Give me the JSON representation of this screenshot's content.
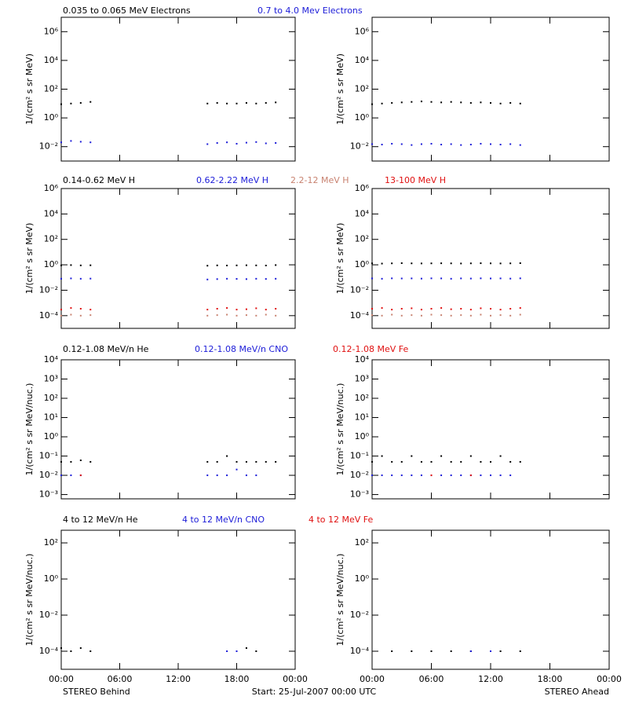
{
  "x_axis": {
    "xlim": [
      0,
      24
    ],
    "xticks": [
      {
        "value": 0,
        "label": "00:00"
      },
      {
        "value": 6,
        "label": "06:00"
      },
      {
        "value": 12,
        "label": "12:00"
      },
      {
        "value": 18,
        "label": "18:00"
      },
      {
        "value": 24,
        "label": "00:00"
      }
    ]
  },
  "footer": {
    "left": "STEREO Behind",
    "center": "Start: 25-Jul-2007 00:00 UTC",
    "right": "STEREO Ahead"
  },
  "chart_data": [
    {
      "type": "scatter",
      "log_y": true,
      "ylabel": "1/(cm² s sr MeV)",
      "ylim": [
        0.001,
        10000000
      ],
      "yticks": [
        {
          "value": 0.01,
          "label": "10⁻²"
        },
        {
          "value": 1,
          "label": "10⁰"
        },
        {
          "value": 100,
          "label": "10²"
        },
        {
          "value": 10000,
          "label": "10⁴"
        },
        {
          "value": 1000000,
          "label": "10⁶"
        }
      ],
      "x": [
        [
          0,
          1,
          2,
          3,
          15,
          16,
          17,
          18,
          19,
          20,
          21,
          22
        ],
        [
          0,
          1,
          2,
          3,
          4,
          5,
          6,
          7,
          8,
          9,
          10,
          11,
          12,
          13,
          14,
          15
        ]
      ],
      "series": [
        {
          "name": "0.035 to 0.065 MeV Electrons",
          "color": "#000000",
          "values": [
            [
              9,
              10,
              11,
              13,
              10,
              11,
              10,
              10,
              11,
              10,
              11,
              12
            ],
            [
              9,
              10,
              11,
              12,
              13,
              14,
              13,
              12,
              13,
              12,
              11,
              12,
              11,
              10,
              11,
              10
            ]
          ]
        },
        {
          "name": "0.7 to 4.0 Mev Electrons",
          "color": "#1c1cd8",
          "values": [
            [
              0.02,
              0.025,
              0.022,
              0.02,
              0.015,
              0.018,
              0.02,
              0.016,
              0.019,
              0.021,
              0.017,
              0.018
            ],
            [
              0.015,
              0.014,
              0.016,
              0.015,
              0.013,
              0.015,
              0.016,
              0.014,
              0.015,
              0.013,
              0.014,
              0.016,
              0.015,
              0.014,
              0.015,
              0.013
            ]
          ]
        }
      ]
    },
    {
      "type": "scatter",
      "log_y": true,
      "ylabel": "1/(cm² s sr MeV)",
      "ylim": [
        1e-05,
        1000000
      ],
      "yticks": [
        {
          "value": 0.0001,
          "label": "10⁻⁴"
        },
        {
          "value": 0.01,
          "label": "10⁻²"
        },
        {
          "value": 1,
          "label": "10⁰"
        },
        {
          "value": 100,
          "label": "10²"
        },
        {
          "value": 10000,
          "label": "10⁴"
        },
        {
          "value": 1000000,
          "label": "10⁶"
        }
      ],
      "x": [
        [
          0,
          1,
          2,
          3,
          15,
          16,
          17,
          18,
          19,
          20,
          21,
          22
        ],
        [
          0,
          1,
          2,
          3,
          4,
          5,
          6,
          7,
          8,
          9,
          10,
          11,
          12,
          13,
          14,
          15
        ]
      ],
      "series": [
        {
          "name": "0.14-0.62 MeV H",
          "color": "#000000",
          "values": [
            [
              0.9,
              0.95,
              0.9,
              0.92,
              0.85,
              0.9,
              0.88,
              0.9,
              0.92,
              0.9,
              0.88,
              0.95
            ],
            [
              1.3,
              1.25,
              1.3,
              1.35,
              1.3,
              1.28,
              1.3,
              1.32,
              1.3,
              1.27,
              1.3,
              1.33,
              1.3,
              1.28,
              1.3,
              1.35
            ]
          ]
        },
        {
          "name": "0.62-2.22 MeV H",
          "color": "#1c1cd8",
          "values": [
            [
              0.08,
              0.085,
              0.08,
              0.082,
              0.07,
              0.075,
              0.08,
              0.078,
              0.075,
              0.08,
              0.077,
              0.08
            ],
            [
              0.085,
              0.08,
              0.086,
              0.084,
              0.085,
              0.082,
              0.086,
              0.085,
              0.08,
              0.085,
              0.083,
              0.086,
              0.084,
              0.085,
              0.082,
              0.086
            ]
          ]
        },
        {
          "name": "2.2-12 MeV H",
          "color": "#c88270",
          "values": [
            [
              0.0001,
              0.00012,
              0.0001,
              0.00011,
              0.0001,
              0.00011,
              0.00012,
              0.0001,
              0.00011,
              0.0001,
              0.00012,
              0.0001
            ],
            [
              0.00011,
              0.0001,
              0.00012,
              0.0001,
              0.00011,
              0.0001,
              0.00012,
              0.00011,
              0.0001,
              0.00011,
              0.0001,
              0.00012,
              0.0001,
              0.00011,
              0.0001,
              0.00012
            ]
          ]
        },
        {
          "name": "13-100 MeV H",
          "color": "#e01010",
          "values": [
            [
              0.0003,
              0.0004,
              0.00035,
              0.0003,
              0.0003,
              0.00035,
              0.0004,
              0.0003,
              0.00032,
              0.00038,
              0.0003,
              0.00035
            ],
            [
              0.00035,
              0.0004,
              0.0003,
              0.00035,
              0.00038,
              0.0003,
              0.00035,
              0.0004,
              0.00032,
              0.00035,
              0.0003,
              0.00038,
              0.00035,
              0.0003,
              0.00035,
              0.0004
            ]
          ]
        }
      ]
    },
    {
      "type": "scatter",
      "log_y": true,
      "ylabel": "1/(cm² s sr MeV/nuc.)",
      "ylim": [
        0.0006,
        10000
      ],
      "yticks": [
        {
          "value": 0.001,
          "label": "10⁻³"
        },
        {
          "value": 0.01,
          "label": "10⁻²"
        },
        {
          "value": 0.1,
          "label": "10⁻¹"
        },
        {
          "value": 1,
          "label": "10⁰"
        },
        {
          "value": 10,
          "label": "10¹"
        },
        {
          "value": 100,
          "label": "10²"
        },
        {
          "value": 1000,
          "label": "10³"
        },
        {
          "value": 10000,
          "label": "10⁴"
        }
      ],
      "x": [
        [
          0,
          1,
          2,
          3,
          15,
          16,
          17,
          18,
          19,
          20,
          21,
          22
        ],
        [
          0,
          1,
          2,
          3,
          4,
          5,
          6,
          7,
          8,
          9,
          10,
          11,
          12,
          13,
          14,
          15
        ]
      ],
      "series": [
        {
          "name": "0.12-1.08 MeV/n He",
          "color": "#000000",
          "values": [
            [
              0.05,
              0.05,
              0.06,
              0.05,
              0.05,
              0.05,
              0.1,
              0.05,
              0.05,
              0.05,
              0.05,
              0.05
            ],
            [
              0.05,
              0.1,
              0.05,
              0.05,
              0.1,
              0.05,
              0.05,
              0.1,
              0.05,
              0.05,
              0.1,
              0.05,
              0.05,
              0.1,
              0.05,
              0.05
            ]
          ]
        },
        {
          "name": "0.12-1.08 MeV/n CNO",
          "color": "#1c1cd8",
          "values": [
            [
              0.01,
              0.01,
              0.01,
              null,
              0.01,
              0.01,
              0.01,
              0.02,
              0.01,
              0.01,
              null,
              null
            ],
            [
              0.01,
              0.01,
              0.01,
              0.01,
              0.01,
              0.01,
              0.01,
              0.01,
              0.01,
              0.01,
              0.01,
              0.01,
              0.01,
              0.01,
              0.01,
              null
            ]
          ]
        },
        {
          "name": "0.12-1.08 MeV Fe",
          "color": "#e01010",
          "values": [
            [
              null,
              null,
              0.01,
              null,
              null,
              null,
              null,
              null,
              null,
              null,
              null,
              null
            ],
            [
              null,
              null,
              null,
              null,
              null,
              null,
              0.01,
              null,
              null,
              null,
              0.01,
              null,
              null,
              null,
              null,
              null
            ]
          ]
        }
      ]
    },
    {
      "type": "scatter",
      "log_y": true,
      "ylabel": "1/(cm² s sr MeV/nuc.)",
      "ylim": [
        1e-05,
        500
      ],
      "yticks": [
        {
          "value": 0.0001,
          "label": "10⁻⁴"
        },
        {
          "value": 0.01,
          "label": "10⁻²"
        },
        {
          "value": 1,
          "label": "10⁰"
        },
        {
          "value": 100,
          "label": "10²"
        }
      ],
      "x": [
        [
          0,
          1,
          2,
          3,
          17,
          18,
          19,
          20
        ],
        [
          2,
          4,
          6,
          8,
          10,
          12,
          13,
          15
        ]
      ],
      "series": [
        {
          "name": "4 to 12 MeV/n He",
          "color": "#000000",
          "values": [
            [
              0.00015,
              0.0001,
              0.00015,
              0.0001,
              null,
              null,
              0.00015,
              0.0001
            ],
            [
              0.0001,
              0.0001,
              0.0001,
              0.0001,
              0.0001,
              null,
              0.0001,
              0.0001
            ]
          ]
        },
        {
          "name": "4 to 12 MeV/n CNO",
          "color": "#1c1cd8",
          "values": [
            [
              null,
              null,
              null,
              null,
              0.0001,
              0.0001,
              null,
              null
            ],
            [
              null,
              null,
              null,
              null,
              0.0001,
              0.0001,
              null,
              null
            ]
          ]
        },
        {
          "name": "4 to 12 MeV Fe",
          "color": "#e01010",
          "values": [
            [
              null,
              null,
              null,
              null,
              null,
              null,
              null,
              null
            ],
            [
              null,
              null,
              null,
              null,
              null,
              null,
              null,
              null
            ]
          ]
        }
      ]
    }
  ]
}
